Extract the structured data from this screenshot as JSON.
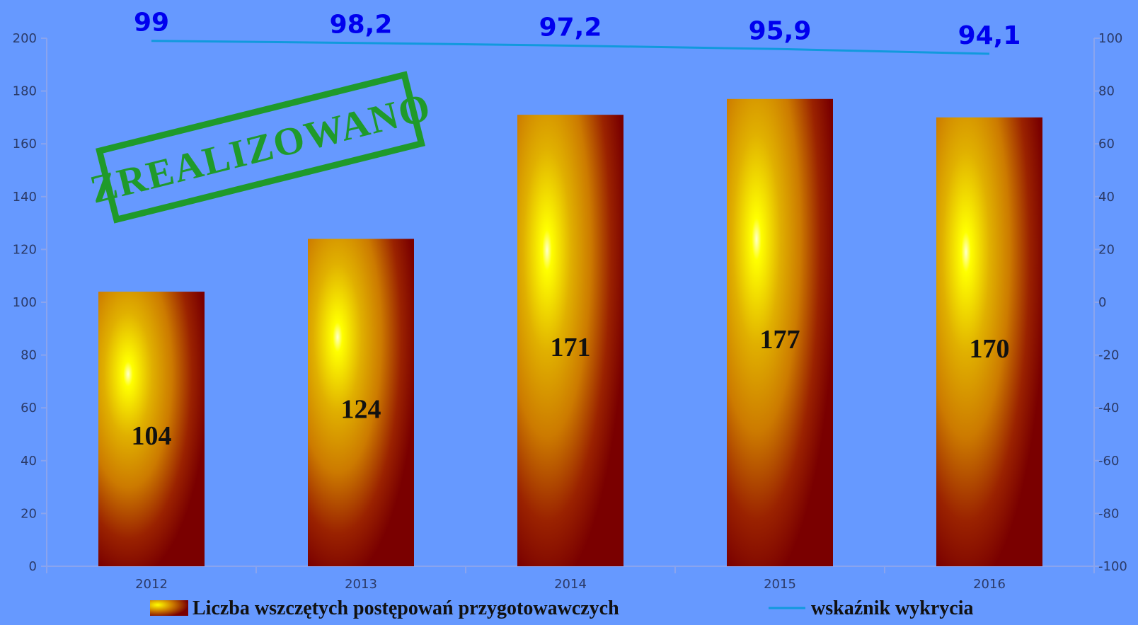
{
  "chart_data": {
    "type": "bar",
    "categories": [
      "2012",
      "2013",
      "2014",
      "2015",
      "2016"
    ],
    "series": [
      {
        "name": "Liczba wszczętych postępowań przygotowawczych",
        "type": "bar",
        "axis": "left",
        "values": [
          104,
          124,
          171,
          177,
          170
        ],
        "labels": [
          "104",
          "124",
          "171",
          "177",
          "170"
        ]
      },
      {
        "name": "wskaźnik wykrycia",
        "type": "line",
        "axis": "right",
        "values": [
          99,
          98.2,
          97.2,
          95.9,
          94.1
        ],
        "labels": [
          "99",
          "98,2",
          "97,2",
          "95,9",
          "94,1"
        ]
      }
    ],
    "y_left": {
      "min": 0,
      "max": 200,
      "ticks": [
        {
          "value": 0,
          "label": "0"
        },
        {
          "value": 20,
          "label": "20"
        },
        {
          "value": 40,
          "label": "40"
        },
        {
          "value": 60,
          "label": "60"
        },
        {
          "value": 80,
          "label": "80"
        },
        {
          "value": 100,
          "label": "100"
        },
        {
          "value": 120,
          "label": "120"
        },
        {
          "value": 140,
          "label": "140"
        },
        {
          "value": 160,
          "label": "160"
        },
        {
          "value": 180,
          "label": "180"
        },
        {
          "value": 200,
          "label": "200"
        }
      ]
    },
    "y_right": {
      "min": -100,
      "max": 100,
      "ticks": [
        {
          "value": -100,
          "label": "-100"
        },
        {
          "value": -80,
          "label": "-80"
        },
        {
          "value": -60,
          "label": "-60"
        },
        {
          "value": -40,
          "label": "-40"
        },
        {
          "value": -20,
          "label": "-20"
        },
        {
          "value": 0,
          "label": "0"
        },
        {
          "value": 20,
          "label": "20"
        },
        {
          "value": 40,
          "label": "40"
        },
        {
          "value": 60,
          "label": "60"
        },
        {
          "value": 80,
          "label": "80"
        },
        {
          "value": 100,
          "label": "100"
        }
      ]
    },
    "grid": false,
    "legend": {
      "position": "bottom",
      "entries": [
        "Liczba wszczętych postępowań przygotowawczych",
        "wskaźnik wykrycia"
      ]
    },
    "stamp": {
      "text": "ZREALIZOWANO",
      "color": "#1f9a2a"
    },
    "colors": {
      "background": "#6699ff",
      "bar_dark": "#7a0000",
      "bar_mid": "#cc7a00",
      "bar_light": "#ffff00",
      "line": "#1199dd",
      "line_label": "#0000ee",
      "axis": "#8aa4ee"
    }
  }
}
